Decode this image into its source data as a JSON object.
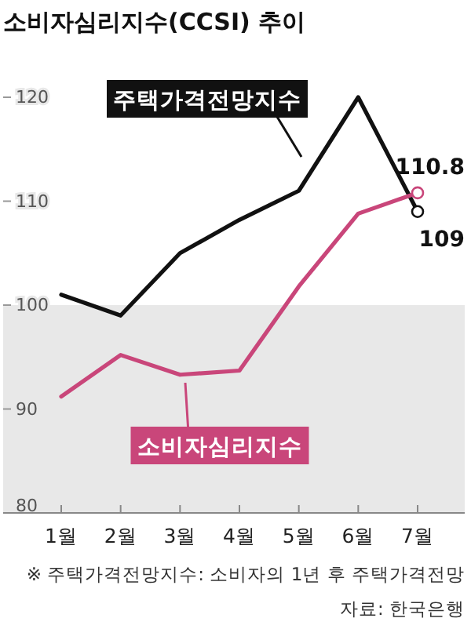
{
  "chart_data": {
    "type": "line",
    "title": "소비자심리지수(CCSI) 추이",
    "categories": [
      "1월",
      "2월",
      "3월",
      "4월",
      "5월",
      "6월",
      "7월"
    ],
    "series": [
      {
        "name": "주택가격전망지수",
        "color": "#111111",
        "values": [
          101,
          99,
          105,
          108.2,
          111,
          120,
          109
        ]
      },
      {
        "name": "소비자심리지수",
        "color": "#c9467a",
        "values": [
          91.2,
          95.2,
          93.3,
          93.7,
          101.8,
          108.8,
          110.8
        ]
      }
    ],
    "ylim": [
      80,
      120
    ],
    "yticks": [
      80,
      90,
      100,
      110,
      120
    ],
    "grid": false,
    "legend": "bottom left",
    "marker": "none",
    "line_style": "solid",
    "bands": [
      {
        "axis": "y",
        "from": 80,
        "to": 100,
        "color": "#e8e8e8"
      }
    ],
    "annotations": [
      {
        "text": "110.8",
        "x": "7월",
        "y": 110.8
      },
      {
        "text": "109",
        "x": "7월",
        "y": 109
      },
      "※ 주택가격전망지수: 소비자의 1년 후 주택가격전망",
      "자료: 한국은행"
    ]
  }
}
